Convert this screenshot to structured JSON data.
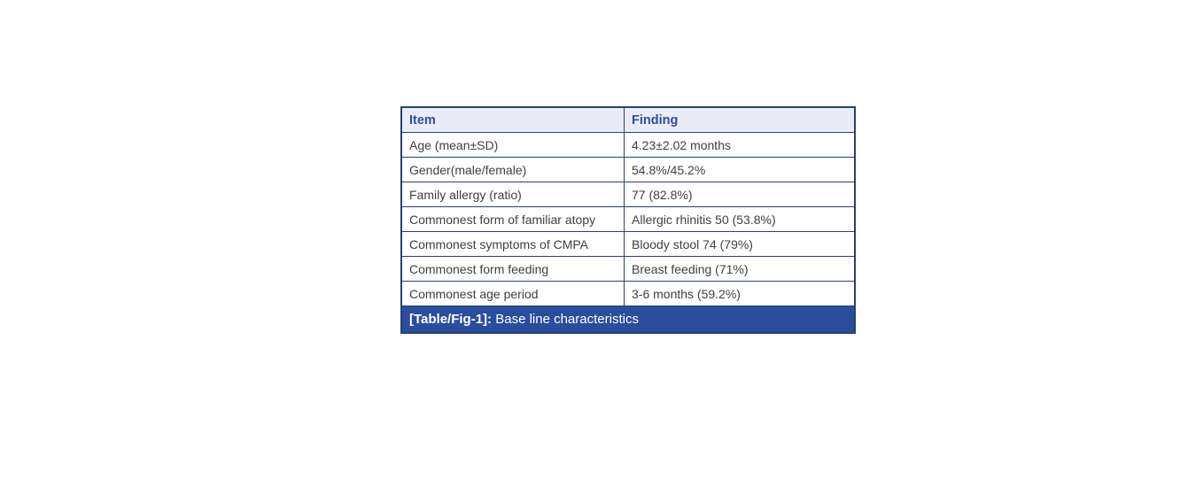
{
  "table": {
    "columns": [
      "Item",
      "Finding"
    ],
    "rows": [
      {
        "item": "Age (mean±SD)",
        "finding": "4.23±2.02 months"
      },
      {
        "item": "Gender(male/female)",
        "finding": "54.8%/45.2%"
      },
      {
        "item": "Family allergy (ratio)",
        "finding": "77 (82.8%)"
      },
      {
        "item": "Commonest form of familiar atopy",
        "finding": "Allergic rhinitis 50 (53.8%)"
      },
      {
        "item": "Commonest symptoms of CMPA",
        "finding": "Bloody stool 74 (79%)"
      },
      {
        "item": "Commonest form feeding",
        "finding": "Breast feeding (71%)"
      },
      {
        "item": "Commonest age period",
        "finding": "3-6 months (59.2%)"
      }
    ],
    "caption": {
      "label": "[Table/Fig-1]:",
      "text": "Base line characteristics"
    }
  },
  "colors": {
    "border_navy": "#26436f",
    "header_background": "#eaebf6",
    "header_text_blue": "#2d4f9e",
    "caption_background": "#2a4d9d",
    "caption_text": "#ffffff",
    "body_text": "#3f3f3f",
    "page_background": "#ffffff"
  }
}
